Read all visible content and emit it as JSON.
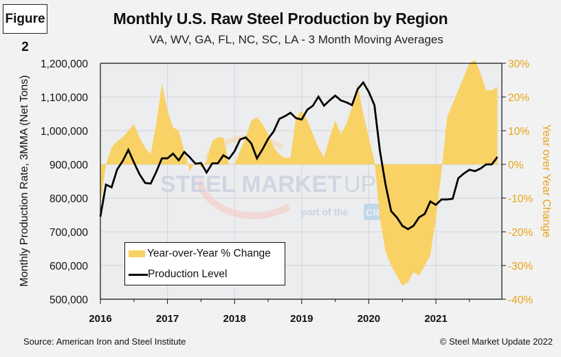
{
  "figure_label": "Figure 2",
  "footer": {
    "source": "Source: American Iron and Steel Institute",
    "copyright": "© Steel Market Update 2022"
  },
  "watermark": {
    "brand": "STEEL MARKET UPDATE",
    "brand_bold": "STEEL MARKET",
    "brand_light": "UPDATE",
    "tagline_pre": "part of the",
    "tagline_badge": "CRU",
    "tagline_post": "Group"
  },
  "colors": {
    "yoy_fill": "#f8d265",
    "production_line": "#000000",
    "right_axis": "#e8a317",
    "plot_bg": "#ecedef",
    "grid": "#d3d4d6"
  },
  "chart_data": {
    "type": "line",
    "title": "Monthly U.S. Raw Steel Production by Region",
    "subtitle": "VA, WV, GA, FL, NC, SC, LA - 3 Month Moving Averages",
    "xlabel": "",
    "ylabel": "Monthly Production Rate, 3MMA (Net Tons)",
    "y2label": "Year over Year Change",
    "ylim": [
      500000,
      1200000
    ],
    "y2lim": [
      -40,
      30
    ],
    "grid": true,
    "legend_position": "bottom-left",
    "y_ticks": [
      "1,200,000",
      "1,100,000",
      "1,000,000",
      "900,000",
      "800,000",
      "700,000",
      "600,000",
      "500,000"
    ],
    "y2_ticks": [
      "30%",
      "20%",
      "10%",
      "0%",
      "-10%",
      "-20%",
      "-30%",
      "-40%"
    ],
    "x_ticks": [
      "2016",
      "2017",
      "2018",
      "2019",
      "2020",
      "2021"
    ],
    "x_start": "2016-01",
    "x_end": "2021-12",
    "series": [
      {
        "name": "Year-over-Year % Change",
        "type": "area",
        "axis": "right",
        "unit": "%",
        "values": [
          -12,
          0,
          5,
          7,
          8,
          10,
          12,
          8,
          5,
          3,
          12,
          24,
          16,
          11,
          10,
          4,
          -2,
          1,
          -1,
          1,
          7,
          8,
          8,
          0,
          0,
          4,
          8,
          13,
          14,
          12,
          9,
          5,
          3,
          2,
          2,
          14,
          16,
          13,
          9,
          5,
          2,
          8,
          13,
          9,
          12,
          17,
          24,
          15,
          8,
          1,
          -16,
          -26,
          -30,
          -33,
          -36,
          -35,
          -32,
          -33,
          -30,
          -27,
          -16,
          -2,
          14,
          18,
          22,
          26,
          30,
          31,
          27,
          22,
          22,
          23
        ]
      },
      {
        "name": "Production Level",
        "type": "line",
        "axis": "left",
        "unit": "net tons",
        "values": [
          745000,
          840000,
          832000,
          885000,
          910000,
          943000,
          906000,
          871000,
          845000,
          843000,
          878000,
          918000,
          918000,
          932000,
          912000,
          937000,
          921000,
          902000,
          904000,
          876000,
          903000,
          903000,
          927000,
          917000,
          939000,
          974000,
          980000,
          962000,
          918000,
          945000,
          976000,
          998000,
          1035000,
          1043000,
          1053000,
          1037000,
          1033000,
          1062000,
          1074000,
          1101000,
          1074000,
          1090000,
          1104000,
          1090000,
          1084000,
          1076000,
          1123000,
          1143000,
          1115000,
          1076000,
          939000,
          840000,
          761000,
          743000,
          718000,
          708000,
          718000,
          743000,
          753000,
          790000,
          780000,
          796000,
          796000,
          798000,
          859000,
          873000,
          884000,
          880000,
          888000,
          900000,
          900000,
          922000
        ]
      }
    ]
  }
}
